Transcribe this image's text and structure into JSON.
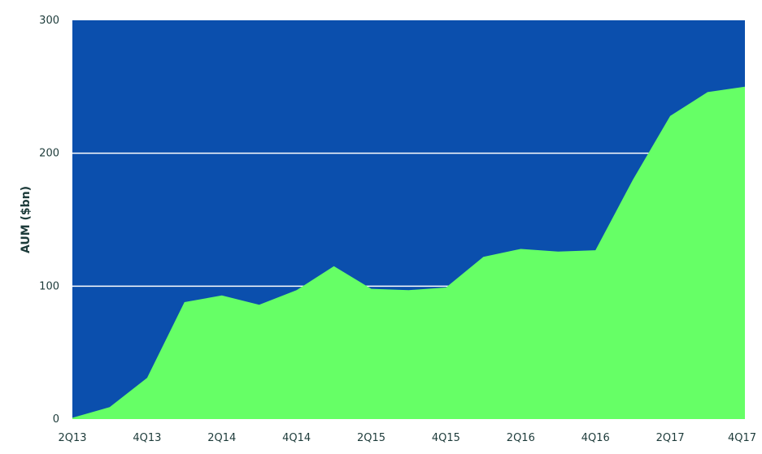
{
  "chart_data": {
    "type": "area",
    "title": "",
    "xlabel": "",
    "ylabel": "AUM ($bn)",
    "ylim": [
      0,
      300
    ],
    "yticks": [
      0,
      100,
      200,
      300
    ],
    "grid": true,
    "legend": "none",
    "x": [
      "2Q13",
      "3Q13",
      "4Q13",
      "1Q14",
      "2Q14",
      "3Q14",
      "4Q14",
      "1Q15",
      "2Q15",
      "3Q15",
      "4Q15",
      "1Q16",
      "2Q16",
      "3Q16",
      "4Q16",
      "1Q17",
      "2Q17",
      "3Q17",
      "4Q17"
    ],
    "xtick_labels": [
      "2Q13",
      "4Q13",
      "2Q14",
      "4Q14",
      "2Q15",
      "4Q15",
      "2Q16",
      "4Q16",
      "2Q17",
      "4Q17"
    ],
    "series": [
      {
        "values": [
          1,
          9,
          31,
          88,
          93,
          86,
          97,
          115,
          98,
          97,
          99,
          122,
          128,
          126,
          127,
          180,
          228,
          246,
          250
        ]
      }
    ],
    "colors": {
      "plot_background": "#0b4fad",
      "area_fill": "#66ff66",
      "gridline": "#ffffff",
      "text": "#1d3b3a"
    }
  }
}
